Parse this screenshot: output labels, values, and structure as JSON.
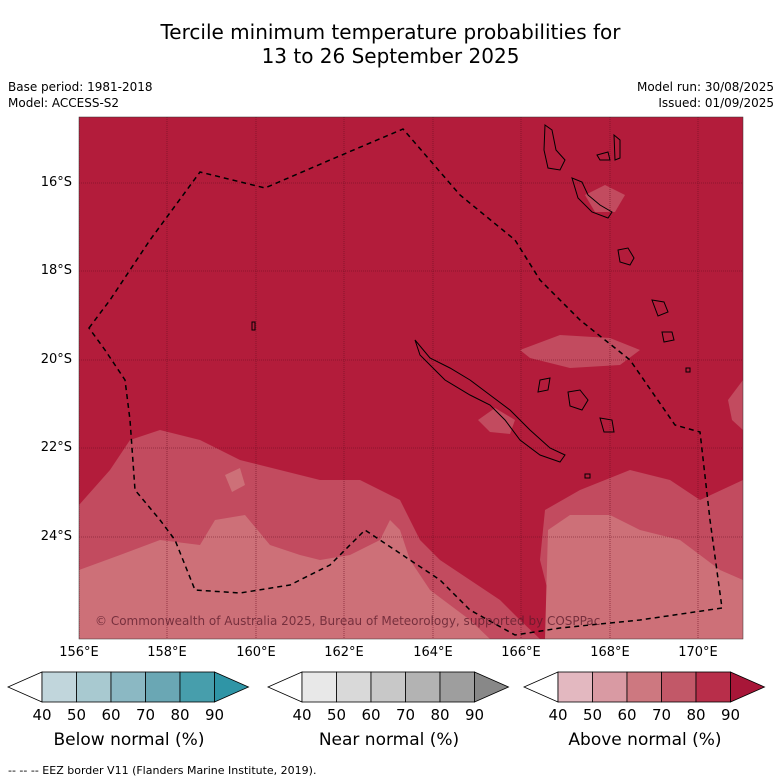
{
  "title_line1": "Tercile minimum temperature probabilities for",
  "title_line2": "13 to 26 September 2025",
  "base_period": "Base period: 1981-2018",
  "model": "Model: ACCESS-S2",
  "model_run": "Model run: 30/08/2025",
  "issued": "Issued: 01/09/2025",
  "copyright": "© Commonwealth of Australia 2025, Bureau of Meteorology, supported by COSPPac",
  "footer": "--  --  -- EEZ border V11 (Flanders Marine Institute, 2019).",
  "lat_labels": [
    "16°S",
    "18°S",
    "20°S",
    "22°S",
    "24°S"
  ],
  "lon_labels": [
    "156°E",
    "158°E",
    "160°E",
    "162°E",
    "164°E",
    "166°E",
    "168°E",
    "170°E"
  ],
  "legends": [
    {
      "title": "Below normal (%)",
      "ticks": [
        "40",
        "50",
        "60",
        "70",
        "80",
        "90"
      ],
      "colors": [
        "#c1d6dc",
        "#a8c9d0",
        "#8bb8c3",
        "#6aa7b4",
        "#479eac",
        "#2f95a6"
      ]
    },
    {
      "title": "Near normal (%)",
      "ticks": [
        "40",
        "50",
        "60",
        "70",
        "80",
        "90"
      ],
      "colors": [
        "#e8e8e8",
        "#d9d9d9",
        "#c8c8c8",
        "#b3b3b3",
        "#9e9e9e",
        "#888888"
      ]
    },
    {
      "title": "Above normal (%)",
      "ticks": [
        "40",
        "50",
        "60",
        "70",
        "80",
        "90"
      ],
      "colors": [
        "#e3b8c0",
        "#d99aa3",
        "#cd7880",
        "#c25868",
        "#b82e4a",
        "#a81638"
      ]
    }
  ],
  "map_colors": {
    "dominant": "#b31c3b",
    "medium": "#c24b5f",
    "light": "#cd7078"
  }
}
